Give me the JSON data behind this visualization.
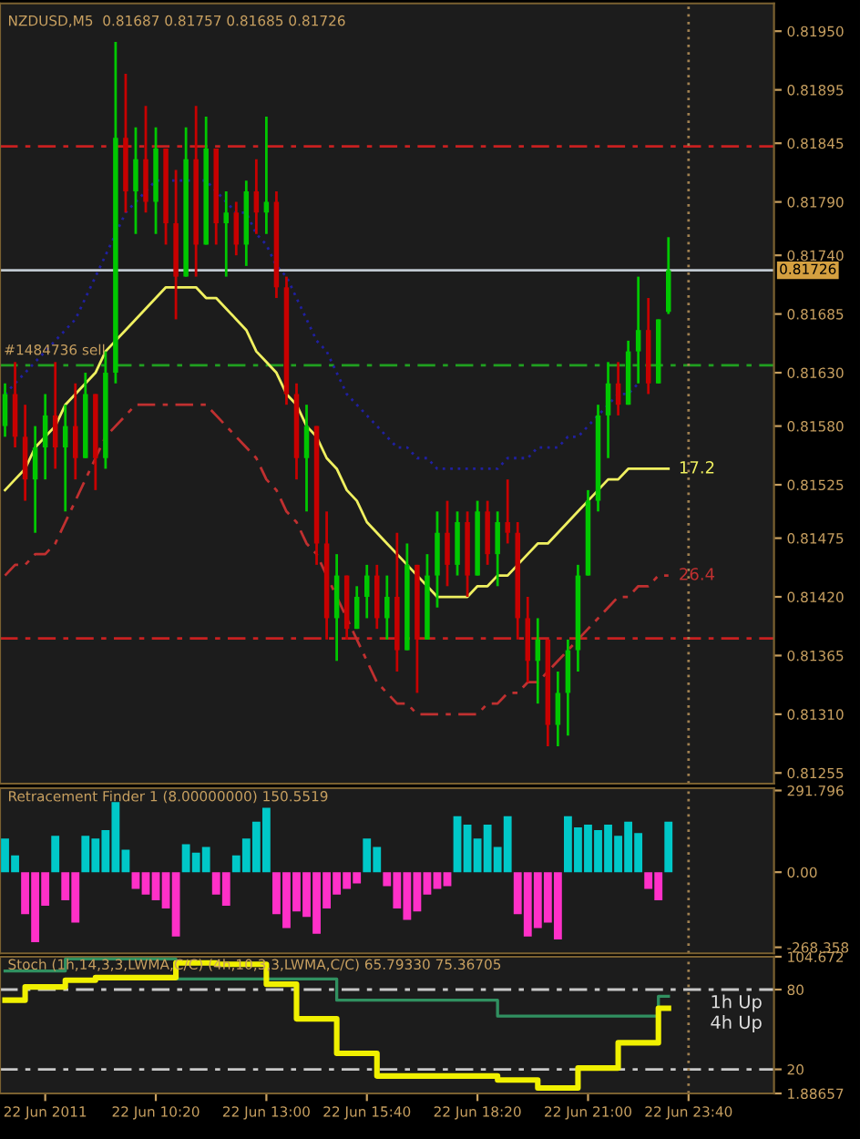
{
  "chart_data": [
    {
      "type": "candlestick",
      "title": "NZDUSD,M5  0.81687 0.81757 0.81685 0.81726",
      "categories": [
        null,
        null,
        null,
        null,
        "22 Jun 2011",
        null,
        null,
        null,
        null,
        null,
        null,
        null,
        null,
        null,
        null,
        "22 Jun 10:20",
        null,
        null,
        null,
        null,
        null,
        null,
        null,
        null,
        null,
        null,
        "22 Jun 13:00",
        null,
        null,
        null,
        null,
        null,
        null,
        null,
        null,
        null,
        "22 Jun 15:40",
        null,
        null,
        null,
        null,
        null,
        null,
        null,
        null,
        null,
        null,
        "22 Jun 18:20",
        null,
        null,
        null,
        null,
        null,
        null,
        null,
        null,
        null,
        null,
        "22 Jun 21:00",
        null,
        null,
        null,
        null,
        null,
        null,
        null,
        null,
        null,
        "22 Jun 23:40",
        null,
        null,
        null,
        null,
        null,
        null,
        null,
        null
      ],
      "ohlc": [
        [
          0.8158,
          0.8162,
          0.8157,
          0.8161
        ],
        [
          0.8161,
          0.8164,
          0.8156,
          0.8157
        ],
        [
          0.8157,
          0.816,
          0.8151,
          0.8153
        ],
        [
          0.8153,
          0.8158,
          0.8148,
          0.8156
        ],
        [
          0.8156,
          0.8161,
          0.8153,
          0.8159
        ],
        [
          0.8159,
          0.8164,
          0.8154,
          0.8156
        ],
        [
          0.8156,
          0.816,
          0.815,
          0.8158
        ],
        [
          0.8158,
          0.8162,
          0.8153,
          0.8155
        ],
        [
          0.8155,
          0.8163,
          0.8155,
          0.8161
        ],
        [
          0.8161,
          0.8161,
          0.8152,
          0.8155
        ],
        [
          0.8155,
          0.8165,
          0.8154,
          0.8163
        ],
        [
          0.8163,
          0.8194,
          0.8162,
          0.8185
        ],
        [
          0.8185,
          0.8191,
          0.8178,
          0.818
        ],
        [
          0.818,
          0.8186,
          0.8176,
          0.8183
        ],
        [
          0.8183,
          0.8188,
          0.8178,
          0.8179
        ],
        [
          0.8179,
          0.8186,
          0.8176,
          0.8184
        ],
        [
          0.8184,
          0.8184,
          0.8175,
          0.8177
        ],
        [
          0.8177,
          0.8182,
          0.8168,
          0.8172
        ],
        [
          0.8172,
          0.8186,
          0.8172,
          0.8183
        ],
        [
          0.8183,
          0.8188,
          0.8172,
          0.8175
        ],
        [
          0.8175,
          0.8187,
          0.8175,
          0.8184
        ],
        [
          0.8184,
          0.8184,
          0.8175,
          0.8177
        ],
        [
          0.8177,
          0.818,
          0.8172,
          0.8178
        ],
        [
          0.8178,
          0.8179,
          0.8174,
          0.8175
        ],
        [
          0.8175,
          0.8181,
          0.8173,
          0.818
        ],
        [
          0.818,
          0.8183,
          0.8176,
          0.8178
        ],
        [
          0.8178,
          0.8187,
          0.8176,
          0.8179
        ],
        [
          0.8179,
          0.818,
          0.817,
          0.8171
        ],
        [
          0.8171,
          0.8172,
          0.816,
          0.8161
        ],
        [
          0.8161,
          0.8162,
          0.8153,
          0.8155
        ],
        [
          0.8155,
          0.816,
          0.815,
          0.8158
        ],
        [
          0.8158,
          0.8158,
          0.8145,
          0.8147
        ],
        [
          0.8147,
          0.815,
          0.8138,
          0.814
        ],
        [
          0.814,
          0.8146,
          0.8136,
          0.8144
        ],
        [
          0.8144,
          0.8144,
          0.8138,
          0.8139
        ],
        [
          0.8139,
          0.8143,
          0.8139,
          0.8142
        ],
        [
          0.8142,
          0.8145,
          0.814,
          0.8144
        ],
        [
          0.8144,
          0.8145,
          0.8139,
          0.814
        ],
        [
          0.814,
          0.8144,
          0.8138,
          0.8142
        ],
        [
          0.8142,
          0.8148,
          0.8135,
          0.8137
        ],
        [
          0.8137,
          0.8147,
          0.8137,
          0.8145
        ],
        [
          0.8145,
          0.8145,
          0.8133,
          0.8138
        ],
        [
          0.8138,
          0.8146,
          0.8138,
          0.8144
        ],
        [
          0.8144,
          0.815,
          0.8141,
          0.8148
        ],
        [
          0.8148,
          0.8151,
          0.8143,
          0.8145
        ],
        [
          0.8145,
          0.815,
          0.8144,
          0.8149
        ],
        [
          0.8149,
          0.815,
          0.8142,
          0.8144
        ],
        [
          0.8144,
          0.8151,
          0.8144,
          0.815
        ],
        [
          0.815,
          0.8151,
          0.8145,
          0.8146
        ],
        [
          0.8146,
          0.815,
          0.8143,
          0.8149
        ],
        [
          0.8149,
          0.8153,
          0.8147,
          0.8148
        ],
        [
          0.8148,
          0.8149,
          0.8138,
          0.814
        ],
        [
          0.814,
          0.8142,
          0.8134,
          0.8136
        ],
        [
          0.8136,
          0.814,
          0.8132,
          0.8138
        ],
        [
          0.8138,
          0.8138,
          0.8128,
          0.813
        ],
        [
          0.813,
          0.8135,
          0.8128,
          0.8133
        ],
        [
          0.8133,
          0.8138,
          0.8129,
          0.8137
        ],
        [
          0.8137,
          0.8145,
          0.8135,
          0.8144
        ],
        [
          0.8144,
          0.8152,
          0.8144,
          0.8151
        ],
        [
          0.8151,
          0.816,
          0.815,
          0.8159
        ],
        [
          0.8159,
          0.8164,
          0.8155,
          0.8162
        ],
        [
          0.8162,
          0.8164,
          0.8159,
          0.816
        ],
        [
          0.816,
          0.8166,
          0.816,
          0.8165
        ],
        [
          0.8165,
          0.8172,
          0.8162,
          0.8167
        ],
        [
          0.8167,
          0.817,
          0.8161,
          0.8162
        ],
        [
          0.8162,
          0.8168,
          0.8162,
          0.8168
        ],
        [
          0.81687,
          0.81757,
          0.81685,
          0.81726
        ],
        null,
        null,
        null,
        null,
        null,
        null,
        null,
        null,
        null,
        null
      ],
      "colors": [
        "#00c800",
        "#c80000",
        "#c80000",
        "#00c800",
        "#00c800",
        "#c80000",
        "#00c800",
        "#c80000",
        "#00c800",
        "#c80000",
        "#00c800",
        "#00c800",
        "#c80000",
        "#00c800",
        "#c80000",
        "#00c800",
        "#c80000",
        "#c80000",
        "#00c800",
        "#c80000",
        "#00c800",
        "#c80000",
        "#00c800",
        "#c80000",
        "#00c800",
        "#c80000",
        "#00c800",
        "#c80000",
        "#c80000",
        "#c80000",
        "#00c800",
        "#c80000",
        "#c80000",
        "#00c800",
        "#c80000",
        "#00c800",
        "#00c800",
        "#c80000",
        "#00c800",
        "#c80000",
        "#00c800",
        "#c80000",
        "#00c800",
        "#00c800",
        "#c80000",
        "#00c800",
        "#c80000",
        "#00c800",
        "#c80000",
        "#00c800",
        "#c80000",
        "#c80000",
        "#c80000",
        "#00c800",
        "#c80000",
        "#00c800",
        "#00c800",
        "#00c800",
        "#00c800",
        "#00c800",
        "#00c800",
        "#c80000",
        "#00c800",
        "#00c800",
        "#c80000",
        "#00c800",
        "#00c800",
        null,
        null,
        null,
        null,
        null,
        null,
        null,
        null,
        null,
        null
      ],
      "series": [
        {
          "type": "line",
          "color": "#f0f060",
          "line_style": "solid",
          "values": [
            0.8152,
            0.8153,
            0.8154,
            0.8156,
            0.8157,
            0.8158,
            0.816,
            0.8161,
            0.8162,
            0.8163,
            0.8165,
            0.8166,
            0.8167,
            0.8168,
            0.8169,
            0.817,
            0.8171,
            0.8171,
            0.8171,
            0.8171,
            0.817,
            0.817,
            0.8169,
            0.8168,
            0.8167,
            0.8165,
            0.8164,
            0.8163,
            0.8161,
            0.816,
            0.8158,
            0.8157,
            0.8155,
            0.8154,
            0.8152,
            0.8151,
            0.8149,
            0.8148,
            0.8147,
            0.8146,
            0.8145,
            0.8144,
            0.8143,
            0.8142,
            0.8142,
            0.8142,
            0.8142,
            0.8143,
            0.8143,
            0.8144,
            0.8144,
            0.8145,
            0.8146,
            0.8147,
            0.8147,
            0.8148,
            0.8149,
            0.815,
            0.8151,
            0.8152,
            0.8153,
            0.8153,
            0.8154,
            0.8154,
            0.8154,
            0.8154,
            0.8154,
            null,
            null,
            null,
            null,
            null,
            null,
            null,
            null,
            null,
            null
          ]
        },
        {
          "type": "line",
          "color": "#c03030",
          "line_style": "dashed",
          "values": [
            0.8144,
            0.8145,
            0.8145,
            0.8146,
            0.8146,
            0.8147,
            0.8149,
            0.8151,
            0.8153,
            0.8155,
            0.8157,
            0.8158,
            0.8159,
            0.816,
            0.816,
            0.816,
            0.816,
            0.816,
            0.816,
            0.816,
            0.816,
            0.8159,
            0.8158,
            0.8157,
            0.8156,
            0.8155,
            0.8153,
            0.8152,
            0.815,
            0.8149,
            0.8147,
            0.8146,
            0.8144,
            0.8142,
            0.814,
            0.8138,
            0.8136,
            0.8134,
            0.8133,
            0.8132,
            0.8132,
            0.8131,
            0.8131,
            0.8131,
            0.8131,
            0.8131,
            0.8131,
            0.8131,
            0.8132,
            0.8132,
            0.8133,
            0.8133,
            0.8134,
            0.8134,
            0.8135,
            0.8136,
            0.8137,
            0.8138,
            0.8139,
            0.814,
            0.8141,
            0.8142,
            0.8142,
            0.8143,
            0.8143,
            0.8144,
            0.8144,
            null,
            null,
            null,
            null,
            null,
            null,
            null,
            null,
            null,
            null
          ]
        },
        {
          "type": "line",
          "color": "#2020a0",
          "line_style": "dotted",
          "values": [
            0.8161,
            0.8162,
            0.8163,
            0.8164,
            0.8165,
            0.8166,
            0.8167,
            0.8168,
            0.817,
            0.8172,
            0.8174,
            0.8176,
            0.8178,
            0.8179,
            0.818,
            0.8181,
            0.8181,
            0.8181,
            0.8181,
            0.8181,
            0.8181,
            0.818,
            0.8179,
            0.8178,
            0.8178,
            0.8176,
            0.8175,
            0.8173,
            0.8172,
            0.817,
            0.8168,
            0.8166,
            0.8165,
            0.8163,
            0.8161,
            0.816,
            0.8159,
            0.8158,
            0.8157,
            0.8156,
            0.8156,
            0.8155,
            0.8155,
            0.8154,
            0.8154,
            0.8154,
            0.8154,
            0.8154,
            0.8154,
            0.8154,
            0.8155,
            0.8155,
            0.8155,
            0.8156,
            0.8156,
            0.8156,
            0.8157,
            0.8157,
            0.8158,
            0.8159,
            0.816,
            0.8161,
            0.8161,
            0.8162,
            null,
            null,
            null,
            null,
            null,
            null,
            null,
            null,
            null,
            null,
            null,
            null,
            null
          ]
        }
      ],
      "annotations": [
        {
          "text": "17.2",
          "y": 0.8154
        },
        {
          "text": "26.4",
          "y": 0.8144
        }
      ],
      "ref_lines": [
        {
          "axis": "y",
          "value": 0.81842,
          "color": "#c82020",
          "line_style": "dashed"
        },
        {
          "axis": "y",
          "value": 0.81637,
          "color": "#20a020",
          "line_style": "dashed",
          "label": "#1484736 sell"
        },
        {
          "axis": "y",
          "value": 0.81381,
          "color": "#c82020",
          "line_style": "dashed"
        },
        {
          "axis": "y",
          "value": 0.81726,
          "color": "#c0c8d0",
          "line_style": "solid",
          "label": "0.81726"
        },
        {
          "axis": "x",
          "value": "22 Jun 23:40",
          "color": "#a08050",
          "line_style": "dotted"
        }
      ],
      "ylim": [
        0.81245,
        0.81976
      ],
      "yticks": [
        {
          "value": 0.8195,
          "label": "0.81950"
        },
        0.81895,
        0.81845,
        {
          "value": 0.8179,
          "label": "0.81790"
        },
        {
          "value": 0.8174,
          "label": "0.81740"
        },
        0.81685,
        {
          "value": 0.8163,
          "label": "0.81630"
        },
        {
          "value": 0.8158,
          "label": "0.81580"
        },
        0.81525,
        0.81475,
        {
          "value": 0.8142,
          "label": "0.81420"
        },
        0.81365,
        {
          "value": 0.8131,
          "label": "0.81310"
        },
        0.81255
      ],
      "tick_labels": "y"
    },
    {
      "type": "bar",
      "title": "Retracement Finder 1 (8.00000000) 150.5519",
      "categories": [
        null,
        null,
        null,
        null,
        "22 Jun 2011",
        null,
        null,
        null,
        null,
        null,
        null,
        null,
        null,
        null,
        null,
        "22 Jun 10:20",
        null,
        null,
        null,
        null,
        null,
        null,
        null,
        null,
        null,
        null,
        "22 Jun 13:00",
        null,
        null,
        null,
        null,
        null,
        null,
        null,
        null,
        null,
        "22 Jun 15:40",
        null,
        null,
        null,
        null,
        null,
        null,
        null,
        null,
        null,
        null,
        "22 Jun 18:20",
        null,
        null,
        null,
        null,
        null,
        null,
        null,
        null,
        null,
        null,
        "22 Jun 21:00",
        null,
        null,
        null,
        null,
        null,
        null,
        null,
        null,
        null,
        "22 Jun 23:40",
        null,
        null,
        null,
        null,
        null,
        null,
        null,
        null
      ],
      "values": [
        120,
        60,
        -150,
        -250,
        -120,
        130,
        -100,
        -180,
        130,
        120,
        150,
        250,
        80,
        -60,
        -80,
        -100,
        -130,
        -230,
        100,
        70,
        90,
        -80,
        -120,
        60,
        120,
        180,
        230,
        -150,
        -200,
        -140,
        -160,
        -220,
        -130,
        -80,
        -60,
        -40,
        120,
        90,
        -50,
        -130,
        -170,
        -140,
        -80,
        -60,
        -50,
        200,
        170,
        120,
        170,
        90,
        200,
        -150,
        -230,
        -200,
        -180,
        -240,
        200,
        160,
        170,
        150,
        170,
        130,
        180,
        140,
        -60,
        -100,
        180,
        null,
        null,
        null,
        null,
        null,
        null,
        null,
        null,
        null,
        null
      ],
      "colors": [
        "#00c8c8",
        "#00c8c8",
        "#ff30c8",
        "#ff30c8",
        "#ff30c8",
        "#00c8c8",
        "#ff30c8",
        "#ff30c8",
        "#00c8c8",
        "#00c8c8",
        "#00c8c8",
        "#00c8c8",
        "#00c8c8",
        "#ff30c8",
        "#ff30c8",
        "#ff30c8",
        "#ff30c8",
        "#ff30c8",
        "#00c8c8",
        "#00c8c8",
        "#00c8c8",
        "#ff30c8",
        "#ff30c8",
        "#00c8c8",
        "#00c8c8",
        "#00c8c8",
        "#00c8c8",
        "#ff30c8",
        "#ff30c8",
        "#ff30c8",
        "#ff30c8",
        "#ff30c8",
        "#ff30c8",
        "#ff30c8",
        "#ff30c8",
        "#ff30c8",
        "#00c8c8",
        "#00c8c8",
        "#ff30c8",
        "#ff30c8",
        "#ff30c8",
        "#ff30c8",
        "#ff30c8",
        "#ff30c8",
        "#ff30c8",
        "#00c8c8",
        "#00c8c8",
        "#00c8c8",
        "#00c8c8",
        "#00c8c8",
        "#00c8c8",
        "#ff30c8",
        "#ff30c8",
        "#ff30c8",
        "#ff30c8",
        "#ff30c8",
        "#00c8c8",
        "#00c8c8",
        "#00c8c8",
        "#00c8c8",
        "#00c8c8",
        "#00c8c8",
        "#00c8c8",
        "#00c8c8",
        "#ff30c8",
        "#ff30c8",
        "#00c8c8",
        null,
        null,
        null,
        null,
        null,
        null,
        null,
        null,
        null,
        null
      ],
      "ref_lines": [
        {
          "axis": "x",
          "value": "22 Jun 23:40",
          "color": "#a08050",
          "line_style": "dotted"
        }
      ],
      "ylim": [
        -290,
        300
      ],
      "yticks": [
        {
          "value": 291.796,
          "label": "291.796"
        },
        {
          "value": 0,
          "label": "0.00"
        },
        {
          "value": -268.358,
          "label": "-268.358"
        }
      ],
      "tick_labels": "y"
    },
    {
      "type": "step",
      "title": "Stoch (1h,14,3,3,LWMA,C/C) (4h,10,3,3,LWMA,C/C) 65.79330 75.36705",
      "categories": [
        null,
        null,
        null,
        null,
        "22 Jun 2011",
        null,
        null,
        null,
        null,
        null,
        null,
        null,
        null,
        null,
        null,
        "22 Jun 10:20",
        null,
        null,
        null,
        null,
        null,
        null,
        null,
        null,
        null,
        null,
        "22 Jun 13:00",
        null,
        null,
        null,
        null,
        null,
        null,
        null,
        null,
        null,
        "22 Jun 15:40",
        null,
        null,
        null,
        null,
        null,
        null,
        null,
        null,
        null,
        null,
        "22 Jun 18:20",
        null,
        null,
        null,
        null,
        null,
        null,
        null,
        null,
        null,
        null,
        "22 Jun 21:00",
        null,
        null,
        null,
        null,
        null,
        null,
        null,
        null,
        null,
        "22 Jun 23:40",
        null,
        null,
        null,
        null,
        null,
        null,
        null,
        null
      ],
      "series": [
        {
          "color": "#f0f000",
          "values": [
            72,
            72,
            82,
            82,
            82,
            82,
            87,
            87,
            87,
            89,
            89,
            89,
            89,
            89,
            89,
            89,
            89,
            100,
            100,
            100,
            100,
            99,
            99,
            99,
            99,
            99,
            84,
            84,
            84,
            58,
            58,
            58,
            58,
            32,
            32,
            32,
            32,
            15,
            15,
            15,
            15,
            15,
            15,
            15,
            15,
            15,
            15,
            15,
            15,
            12,
            12,
            12,
            12,
            6,
            6,
            6,
            6,
            21,
            21,
            21,
            21,
            40,
            40,
            40,
            40,
            66,
            66,
            null,
            null,
            null,
            null,
            null,
            null,
            null,
            null,
            null,
            null
          ]
        },
        {
          "color": "#309060",
          "values": [
            94,
            94,
            94,
            94,
            94,
            94,
            103,
            103,
            103,
            103,
            103,
            103,
            103,
            103,
            103,
            103,
            103,
            88,
            88,
            88,
            88,
            88,
            88,
            88,
            88,
            88,
            88,
            88,
            88,
            88,
            88,
            88,
            88,
            72,
            72,
            72,
            72,
            72,
            72,
            72,
            72,
            72,
            72,
            72,
            72,
            72,
            72,
            72,
            72,
            60,
            60,
            60,
            60,
            60,
            60,
            60,
            60,
            60,
            60,
            60,
            60,
            60,
            60,
            60,
            60,
            75,
            75,
            null,
            null,
            null,
            null,
            null,
            null,
            null,
            null,
            null,
            null
          ]
        }
      ],
      "annotations": [
        "1h Up",
        "4h Up"
      ],
      "ref_lines": [
        {
          "axis": "y",
          "value": 80,
          "color": "#c8c8c8",
          "line_style": "dashed"
        },
        {
          "axis": "y",
          "value": 20,
          "color": "#c8c8c8",
          "line_style": "dashed"
        },
        {
          "axis": "x",
          "value": "22 Jun 23:40",
          "color": "#a08050",
          "line_style": "dotted"
        }
      ],
      "ylim": [
        1.88657,
        104.672
      ],
      "yticks": [
        {
          "value": 104.672,
          "label": "104.672"
        },
        80,
        20,
        {
          "value": 1.88657,
          "label": "1.88657"
        }
      ]
    }
  ]
}
